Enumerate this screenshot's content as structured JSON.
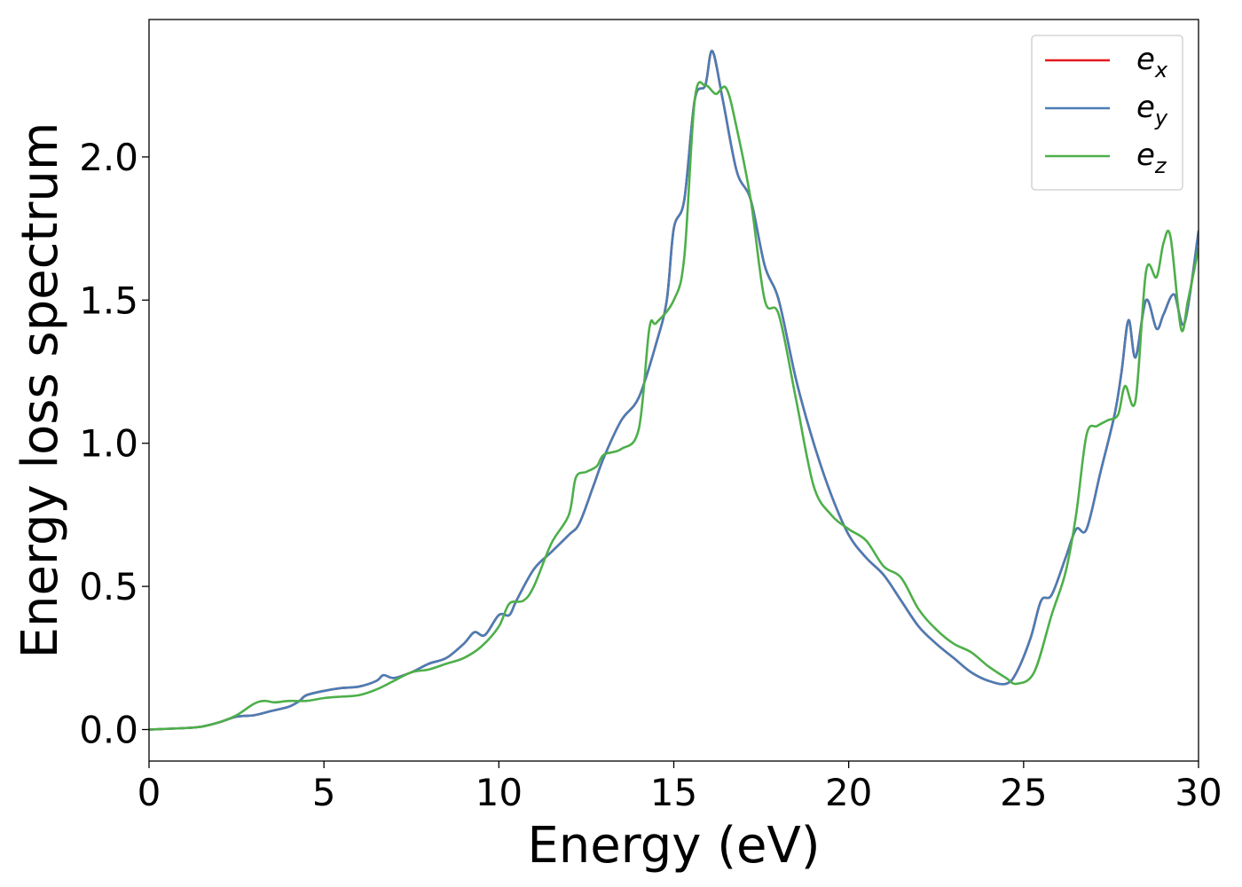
{
  "chart_data": {
    "type": "line",
    "title": "",
    "xlabel": "Energy (eV)",
    "ylabel": "Energy loss spectrum",
    "xlim": [
      0,
      30
    ],
    "ylim": [
      -0.11,
      2.48
    ],
    "xticks": [
      0,
      5,
      10,
      15,
      20,
      25,
      30
    ],
    "xtick_labels": [
      "0",
      "5",
      "10",
      "15",
      "20",
      "25",
      "30"
    ],
    "yticks": [
      0.0,
      0.5,
      1.0,
      1.5,
      2.0
    ],
    "ytick_labels": [
      "0.0",
      "0.5",
      "1.0",
      "1.5",
      "2.0"
    ],
    "grid": false,
    "legend_position": "top-right",
    "series": [
      {
        "name": "e_x",
        "label_main": "e",
        "label_sub": "x",
        "color": "#e41a1c",
        "x": [
          0,
          1,
          1.5,
          2,
          2.5,
          3,
          3.5,
          4,
          4.3,
          4.5,
          5,
          5.5,
          6,
          6.5,
          6.7,
          7,
          7.5,
          8,
          8.5,
          9,
          9.3,
          9.6,
          10,
          10.3,
          10.5,
          11,
          11.5,
          12,
          12.3,
          12.7,
          13,
          13.5,
          14,
          14.5,
          14.8,
          15,
          15.3,
          15.6,
          15.9,
          16.1,
          16.4,
          16.8,
          17.2,
          17.6,
          18,
          18.5,
          19,
          19.5,
          20,
          20.5,
          21,
          21.5,
          22,
          22.5,
          23,
          23.5,
          24,
          24.5,
          24.8,
          25.2,
          25.5,
          25.8,
          26.2,
          26.5,
          26.8,
          27.2,
          27.6,
          27.8,
          28,
          28.2,
          28.5,
          28.8,
          29,
          29.3,
          29.6,
          30
        ],
        "y": [
          0,
          0.005,
          0.01,
          0.025,
          0.045,
          0.05,
          0.065,
          0.08,
          0.1,
          0.12,
          0.135,
          0.145,
          0.15,
          0.17,
          0.19,
          0.18,
          0.2,
          0.23,
          0.25,
          0.3,
          0.34,
          0.33,
          0.4,
          0.4,
          0.45,
          0.56,
          0.62,
          0.68,
          0.72,
          0.85,
          0.95,
          1.08,
          1.16,
          1.35,
          1.5,
          1.75,
          1.85,
          2.2,
          2.25,
          2.37,
          2.2,
          1.95,
          1.85,
          1.62,
          1.5,
          1.22,
          1.0,
          0.82,
          0.68,
          0.6,
          0.54,
          0.45,
          0.36,
          0.3,
          0.25,
          0.2,
          0.17,
          0.16,
          0.2,
          0.32,
          0.45,
          0.47,
          0.6,
          0.7,
          0.7,
          0.9,
          1.1,
          1.25,
          1.43,
          1.3,
          1.5,
          1.4,
          1.45,
          1.52,
          1.42,
          1.74
        ]
      },
      {
        "name": "e_y",
        "label_main": "e",
        "label_sub": "y",
        "color": "#4a7db5",
        "x": [
          0,
          1,
          1.5,
          2,
          2.5,
          3,
          3.5,
          4,
          4.3,
          4.5,
          5,
          5.5,
          6,
          6.5,
          6.7,
          7,
          7.5,
          8,
          8.5,
          9,
          9.3,
          9.6,
          10,
          10.3,
          10.5,
          11,
          11.5,
          12,
          12.3,
          12.7,
          13,
          13.5,
          14,
          14.5,
          14.8,
          15,
          15.3,
          15.6,
          15.9,
          16.1,
          16.4,
          16.8,
          17.2,
          17.6,
          18,
          18.5,
          19,
          19.5,
          20,
          20.5,
          21,
          21.5,
          22,
          22.5,
          23,
          23.5,
          24,
          24.5,
          24.8,
          25.2,
          25.5,
          25.8,
          26.2,
          26.5,
          26.8,
          27.2,
          27.6,
          27.8,
          28,
          28.2,
          28.5,
          28.8,
          29,
          29.3,
          29.6,
          30
        ],
        "y": [
          0,
          0.005,
          0.01,
          0.025,
          0.045,
          0.05,
          0.065,
          0.08,
          0.1,
          0.12,
          0.135,
          0.145,
          0.15,
          0.17,
          0.19,
          0.18,
          0.2,
          0.23,
          0.25,
          0.3,
          0.34,
          0.33,
          0.4,
          0.4,
          0.45,
          0.56,
          0.62,
          0.68,
          0.72,
          0.85,
          0.95,
          1.08,
          1.16,
          1.35,
          1.5,
          1.75,
          1.85,
          2.2,
          2.25,
          2.37,
          2.2,
          1.95,
          1.85,
          1.62,
          1.5,
          1.22,
          1.0,
          0.82,
          0.68,
          0.6,
          0.54,
          0.45,
          0.36,
          0.3,
          0.25,
          0.2,
          0.17,
          0.16,
          0.2,
          0.32,
          0.45,
          0.47,
          0.6,
          0.7,
          0.7,
          0.9,
          1.1,
          1.25,
          1.43,
          1.3,
          1.5,
          1.4,
          1.45,
          1.52,
          1.42,
          1.74
        ]
      },
      {
        "name": "e_z",
        "label_main": "e",
        "label_sub": "z",
        "color": "#4daf4a",
        "x": [
          0,
          1,
          1.5,
          2,
          2.5,
          3,
          3.3,
          3.6,
          4,
          4.5,
          5,
          5.5,
          6,
          6.5,
          7,
          7.5,
          8,
          8.5,
          9,
          9.5,
          10,
          10.3,
          10.7,
          11,
          11.5,
          12,
          12.2,
          12.5,
          12.8,
          13,
          13.5,
          14,
          14.3,
          14.5,
          15,
          15.3,
          15.6,
          15.9,
          16.2,
          16.5,
          16.8,
          17.2,
          17.6,
          18,
          18.5,
          19,
          19.5,
          20,
          20.5,
          21,
          21.5,
          22,
          22.5,
          23,
          23.5,
          24,
          24.5,
          24.8,
          25.3,
          25.8,
          26.2,
          26.5,
          26.8,
          27.1,
          27.4,
          27.7,
          27.9,
          28.2,
          28.5,
          28.8,
          29,
          29.2,
          29.5,
          29.7,
          30
        ],
        "y": [
          0,
          0.005,
          0.01,
          0.025,
          0.05,
          0.09,
          0.1,
          0.095,
          0.1,
          0.1,
          0.11,
          0.115,
          0.12,
          0.14,
          0.17,
          0.2,
          0.21,
          0.23,
          0.25,
          0.29,
          0.36,
          0.44,
          0.45,
          0.5,
          0.65,
          0.75,
          0.88,
          0.9,
          0.92,
          0.96,
          0.98,
          1.05,
          1.4,
          1.42,
          1.5,
          1.65,
          2.2,
          2.25,
          2.22,
          2.24,
          2.1,
          1.85,
          1.5,
          1.45,
          1.15,
          0.85,
          0.75,
          0.7,
          0.66,
          0.57,
          0.53,
          0.42,
          0.35,
          0.3,
          0.27,
          0.22,
          0.18,
          0.16,
          0.2,
          0.4,
          0.55,
          0.75,
          1.03,
          1.06,
          1.08,
          1.1,
          1.2,
          1.15,
          1.6,
          1.58,
          1.7,
          1.72,
          1.4,
          1.5,
          1.68
        ]
      }
    ]
  }
}
